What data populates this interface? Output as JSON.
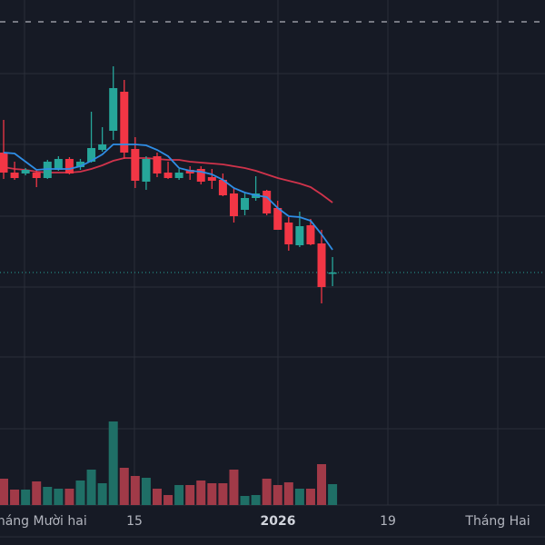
{
  "chart_data": {
    "type": "candlestick",
    "title": "",
    "xlabel": "",
    "ylabel": "",
    "y_axis_labels_visible": false,
    "grid": true,
    "theme": "dark",
    "colors": {
      "background": "#161a25",
      "up": "#26a69a",
      "down": "#f23645",
      "up_volume": "#1f6f66",
      "down_volume": "#a13a48",
      "ma_short": "#2f8ee6",
      "ma_long": "#d0334b",
      "grid": "#2a2e39",
      "last_price_line": "#26a69a",
      "dashed_line": "#9598a1"
    },
    "x_tick_labels": [
      {
        "text": "Tháng Mười hai",
        "bold": false
      },
      {
        "text": "15",
        "bold": false
      },
      {
        "text": "2026",
        "bold": true
      },
      {
        "text": "19",
        "bold": false
      },
      {
        "text": "Tháng Hai",
        "bold": false
      }
    ],
    "ylim": [
      0,
      40
    ],
    "dashed_level": 37.6,
    "last_price": 10.0,
    "ohlc": [
      [
        23.2,
        26.8,
        20.3,
        21.0
      ],
      [
        21.0,
        22.2,
        20.2,
        20.4
      ],
      [
        20.9,
        21.5,
        20.7,
        21.3
      ],
      [
        21.0,
        21.3,
        19.4,
        20.4
      ],
      [
        20.4,
        22.4,
        20.3,
        22.2
      ],
      [
        21.3,
        22.8,
        21.2,
        22.5
      ],
      [
        22.5,
        22.7,
        20.8,
        20.9
      ],
      [
        21.6,
        22.5,
        21.3,
        22.2
      ],
      [
        22.2,
        27.7,
        22.1,
        23.7
      ],
      [
        23.5,
        26.0,
        23.3,
        24.1
      ],
      [
        25.6,
        32.7,
        24.6,
        30.3
      ],
      [
        29.9,
        31.2,
        22.5,
        23.2
      ],
      [
        23.6,
        24.9,
        19.3,
        20.1
      ],
      [
        20.0,
        22.8,
        19.1,
        22.5
      ],
      [
        22.8,
        23.2,
        20.5,
        20.9
      ],
      [
        21.0,
        22.2,
        20.3,
        20.4
      ],
      [
        20.4,
        21.4,
        20.2,
        21.0
      ],
      [
        21.3,
        21.7,
        20.2,
        20.9
      ],
      [
        21.4,
        21.7,
        19.7,
        20.0
      ],
      [
        20.5,
        21.4,
        19.2,
        20.1
      ],
      [
        20.2,
        20.9,
        18.4,
        18.5
      ],
      [
        18.7,
        19.3,
        15.5,
        16.2
      ],
      [
        16.9,
        18.7,
        16.3,
        18.2
      ],
      [
        18.2,
        20.6,
        17.9,
        18.7
      ],
      [
        19.0,
        19.1,
        16.3,
        16.5
      ],
      [
        17.1,
        17.9,
        14.7,
        14.7
      ],
      [
        15.5,
        16.1,
        12.4,
        13.1
      ],
      [
        13.0,
        16.7,
        12.8,
        15.1
      ],
      [
        15.2,
        15.9,
        13.0,
        13.1
      ],
      [
        13.2,
        14.7,
        6.6,
        8.4
      ],
      [
        9.9,
        11.7,
        8.5,
        10.0
      ]
    ],
    "volume": [
      29,
      17,
      17,
      26,
      20,
      18,
      18,
      27,
      39,
      24,
      92,
      41,
      32,
      30,
      18,
      11,
      22,
      22,
      27,
      24,
      24,
      39,
      10,
      11,
      29,
      22,
      25,
      18,
      18,
      45,
      23
    ],
    "ma_short": [
      23.2,
      23.1,
      22.2,
      21.3,
      21.4,
      21.4,
      21.4,
      21.7,
      22.3,
      23.0,
      24.1,
      24.1,
      24.1,
      24.0,
      23.5,
      22.8,
      21.5,
      21.2,
      21.1,
      20.8,
      20.2,
      19.3,
      18.8,
      18.5,
      18.3,
      17.1,
      16.2,
      16.1,
      15.7,
      14.2,
      12.5
    ],
    "ma_long": [
      21.6,
      21.4,
      21.3,
      21.1,
      21.0,
      21.0,
      21.0,
      21.1,
      21.4,
      21.8,
      22.3,
      22.6,
      22.6,
      22.6,
      22.5,
      22.4,
      22.4,
      22.2,
      22.1,
      22.0,
      21.9,
      21.7,
      21.5,
      21.2,
      20.8,
      20.4,
      20.1,
      19.8,
      19.4,
      18.6,
      17.7
    ]
  }
}
